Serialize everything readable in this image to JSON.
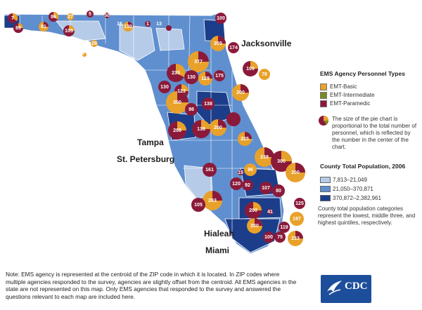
{
  "cities": {
    "jacksonville": "Jacksonville",
    "tampa": "Tampa",
    "st_petersburg": "St. Petersburg",
    "hialeah": "Hialeah",
    "miami": "Miami"
  },
  "legend": {
    "personnel_title": "EMS Agency Personnel Types",
    "personnel_types": [
      "EMT-Basic",
      "EMT-Intermediate",
      "EMT-Paramedic"
    ],
    "pie_note": "The size of the pie chart is proportional to the total number of personnel, which is reflected by the number in the center of the chart.",
    "population_title": "County Total Population, 2006",
    "population_classes": [
      "7,813–21,049",
      "21,050–370,871",
      "370,872–2,382,961"
    ],
    "population_note": "County total population categories represent the lowest, middle three, and highest quintiles, respectively."
  },
  "footnote": "Note: EMS agency is represented at the centroid of the ZIP code in which it is located. In ZIP codes where multiple agencies responded to the survey, agencies are slightly offset from the centroid. All EMS agencies in the state are not represented on this map. Only EMS agencies that responded to the survey and answered the questions relevant to each map are included here.",
  "logo": "CDC",
  "colors": {
    "emt_basic": "#e8a12a",
    "emt_intermediate": "#7a8a22",
    "emt_paramedic": "#8b1a3a",
    "pop_low": "#b6cbe8",
    "pop_mid": "#5f8fcf",
    "pop_high": "#1c3e8a"
  },
  "agencies": [
    {
      "label": "7"
    },
    {
      "label": "89"
    },
    {
      "label": "61"
    },
    {
      "label": "86"
    },
    {
      "label": "105"
    },
    {
      "label": "27"
    },
    {
      "label": "5"
    },
    {
      "label": "50"
    },
    {
      "label": "16"
    },
    {
      "label": "130"
    },
    {
      "label": "1"
    },
    {
      "label": "13"
    },
    {
      "label": "28"
    },
    {
      "label": "18"
    },
    {
      "label": "10"
    },
    {
      "label": "100"
    },
    {
      "label": "205"
    },
    {
      "label": "174"
    },
    {
      "label": "377"
    },
    {
      "label": "233"
    },
    {
      "label": "130"
    },
    {
      "label": "129"
    },
    {
      "label": "109"
    },
    {
      "label": "78"
    },
    {
      "label": "175"
    },
    {
      "label": "130"
    },
    {
      "label": "123"
    },
    {
      "label": "300"
    },
    {
      "label": "200"
    },
    {
      "label": "98"
    },
    {
      "label": "138"
    },
    {
      "label": "208"
    },
    {
      "label": "200"
    },
    {
      "label": "138"
    },
    {
      "label": "225"
    },
    {
      "label": "239"
    },
    {
      "label": "300"
    },
    {
      "label": "200"
    },
    {
      "label": "161"
    },
    {
      "label": "96"
    },
    {
      "label": "80"
    },
    {
      "label": "92"
    },
    {
      "label": "107"
    },
    {
      "label": "120"
    },
    {
      "label": "283"
    },
    {
      "label": "200"
    },
    {
      "label": "105"
    },
    {
      "label": "125"
    },
    {
      "label": "197"
    },
    {
      "label": "200"
    },
    {
      "label": "119"
    },
    {
      "label": "100"
    },
    {
      "label": "75"
    },
    {
      "label": "233"
    },
    {
      "label": "15"
    },
    {
      "label": "41"
    }
  ]
}
